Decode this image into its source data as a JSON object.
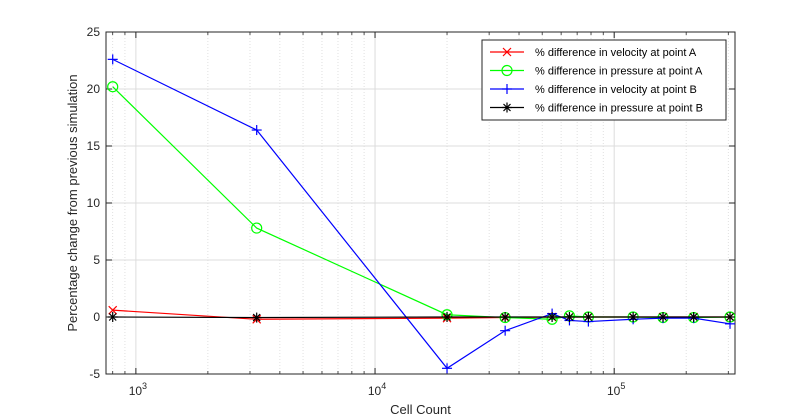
{
  "chart_data": {
    "type": "line",
    "xscale": "log",
    "xlabel": "Cell Count",
    "ylabel": "Percentage change from previous simulation",
    "xlim": [
      750,
      320000
    ],
    "ylim": [
      -5,
      25
    ],
    "grid": true,
    "legend_position": "top-right",
    "x_ticks": [
      {
        "value": 1000,
        "base": "10",
        "exp": "3"
      },
      {
        "value": 10000,
        "base": "10",
        "exp": "4"
      },
      {
        "value": 100000,
        "base": "10",
        "exp": "5"
      }
    ],
    "y_ticks": [
      -5,
      0,
      5,
      10,
      15,
      20,
      25
    ],
    "series": [
      {
        "name": "% difference in velocity at point A",
        "color": "#ff0000",
        "marker": "x",
        "x": [
          800,
          3200,
          20000,
          35000,
          55000,
          65000,
          78000,
          120000,
          160000,
          215000,
          305000
        ],
        "y": [
          0.6,
          -0.2,
          -0.1,
          -0.05,
          0.0,
          0.0,
          0.0,
          0.0,
          0.0,
          0.0,
          0.0
        ]
      },
      {
        "name": "% difference in pressure at point A",
        "color": "#00ff00",
        "marker": "o",
        "x": [
          800,
          3200,
          20000,
          35000,
          55000,
          65000,
          78000,
          120000,
          160000,
          215000,
          305000
        ],
        "y": [
          20.2,
          7.8,
          0.2,
          -0.05,
          -0.2,
          0.1,
          0.0,
          0.0,
          -0.05,
          -0.05,
          0.0
        ]
      },
      {
        "name": "% difference in velocity at point B",
        "color": "#0000ff",
        "marker": "+",
        "x": [
          800,
          3200,
          20000,
          35000,
          55000,
          65000,
          78000,
          120000,
          160000,
          215000,
          305000
        ],
        "y": [
          22.6,
          16.4,
          -4.5,
          -1.2,
          0.3,
          -0.3,
          -0.4,
          -0.2,
          -0.1,
          -0.1,
          -0.6
        ]
      },
      {
        "name": "% difference in pressure at point B",
        "color": "#000000",
        "marker": "*",
        "x": [
          800,
          3200,
          20000,
          35000,
          55000,
          65000,
          78000,
          120000,
          160000,
          215000,
          305000
        ],
        "y": [
          0.0,
          -0.05,
          0.0,
          0.0,
          0.0,
          0.0,
          0.0,
          0.0,
          0.0,
          0.0,
          0.0
        ]
      }
    ]
  }
}
